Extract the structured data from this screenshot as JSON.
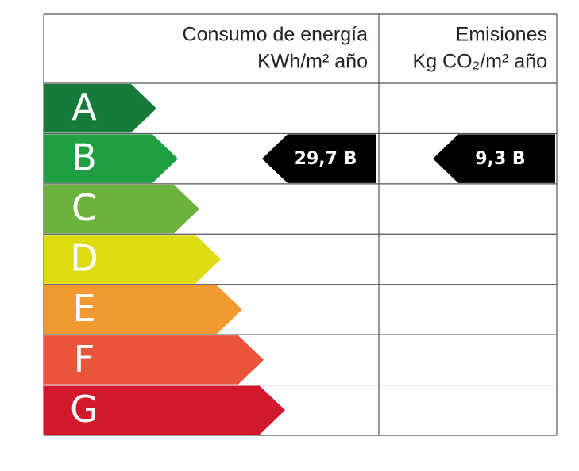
{
  "header": {
    "consumption": [
      "Consumo de energía",
      "KWh/m² año"
    ],
    "emissions": [
      "Emisiones",
      "Kg CO₂/m² año"
    ]
  },
  "classes": [
    {
      "letter": "A",
      "color": "#177a3b"
    },
    {
      "letter": "B",
      "color": "#1f9e42"
    },
    {
      "letter": "C",
      "color": "#6bb33d"
    },
    {
      "letter": "D",
      "color": "#dedb13"
    },
    {
      "letter": "E",
      "color": "#f19a32"
    },
    {
      "letter": "F",
      "color": "#e8553b"
    },
    {
      "letter": "G",
      "color": "#d2182d"
    }
  ],
  "rating": {
    "consumption": "29,7 B",
    "emissions": "9,3 B"
  }
}
